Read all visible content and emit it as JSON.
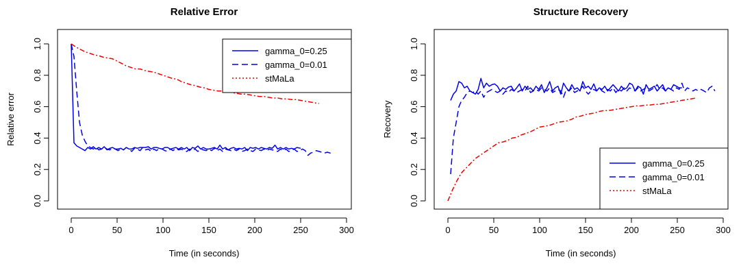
{
  "chart_data": [
    {
      "type": "line",
      "title": "Relative Error",
      "xlabel": "Time (in seconds)",
      "ylabel": "Relative error",
      "xlim": [
        0,
        300
      ],
      "ylim": [
        0,
        1
      ],
      "xticks": [
        "0",
        "50",
        "100",
        "150",
        "200",
        "250",
        "300"
      ],
      "yticks": [
        "0.0",
        "0.2",
        "0.4",
        "0.6",
        "0.8",
        "1.0"
      ],
      "legend_position": "top-right",
      "series": [
        {
          "name": "gamma_0=0.25",
          "color": "#0000ee",
          "style": "solid",
          "x": [
            0,
            3,
            6,
            9,
            12,
            15,
            18,
            21,
            24,
            27,
            30,
            33,
            36,
            39,
            42,
            45,
            48,
            51,
            54,
            57,
            60,
            63,
            66,
            69,
            72,
            75,
            78,
            81,
            84,
            87,
            90,
            93,
            96,
            99,
            102,
            105,
            108,
            111,
            114,
            117,
            120,
            123,
            126,
            129,
            132,
            135,
            138,
            141,
            144,
            147,
            150,
            153,
            156,
            159,
            162,
            165,
            168,
            171,
            174,
            177,
            180,
            183,
            186,
            189,
            192,
            195,
            198,
            201,
            204,
            207,
            210,
            213,
            216,
            219,
            222,
            225,
            228,
            231,
            234,
            237,
            240,
            243,
            246,
            250
          ],
          "y": [
            1.0,
            0.37,
            0.35,
            0.34,
            0.33,
            0.32,
            0.34,
            0.33,
            0.345,
            0.33,
            0.34,
            0.33,
            0.345,
            0.325,
            0.335,
            0.34,
            0.33,
            0.33,
            0.335,
            0.325,
            0.34,
            0.33,
            0.33,
            0.34,
            0.335,
            0.34,
            0.34,
            0.34,
            0.345,
            0.33,
            0.34,
            0.34,
            0.335,
            0.33,
            0.34,
            0.34,
            0.33,
            0.335,
            0.34,
            0.33,
            0.34,
            0.33,
            0.34,
            0.32,
            0.34,
            0.335,
            0.35,
            0.33,
            0.34,
            0.33,
            0.33,
            0.335,
            0.34,
            0.33,
            0.355,
            0.33,
            0.34,
            0.325,
            0.335,
            0.34,
            0.33,
            0.335,
            0.33,
            0.34,
            0.32,
            0.34,
            0.335,
            0.34,
            0.33,
            0.34,
            0.335,
            0.33,
            0.34,
            0.335,
            0.355,
            0.33,
            0.34,
            0.33,
            0.34,
            0.33,
            0.335,
            0.33,
            0.34,
            0.335
          ]
        },
        {
          "name": "gamma_0=0.01",
          "color": "#0000ee",
          "style": "dashed",
          "x": [
            0,
            3,
            6,
            9,
            12,
            15,
            18,
            21,
            24,
            27,
            30,
            33,
            36,
            39,
            42,
            45,
            48,
            51,
            54,
            57,
            60,
            63,
            66,
            69,
            72,
            75,
            78,
            81,
            84,
            87,
            90,
            93,
            96,
            99,
            102,
            105,
            108,
            111,
            114,
            117,
            120,
            123,
            126,
            129,
            132,
            135,
            138,
            141,
            144,
            147,
            150,
            153,
            156,
            159,
            162,
            165,
            168,
            171,
            174,
            177,
            180,
            183,
            186,
            189,
            192,
            195,
            198,
            201,
            204,
            207,
            210,
            213,
            216,
            219,
            222,
            225,
            228,
            231,
            234,
            237,
            240,
            243,
            246,
            249,
            252,
            255,
            258,
            261,
            264,
            267,
            270,
            273,
            276,
            279,
            282,
            285
          ],
          "y": [
            1.0,
            0.92,
            0.7,
            0.5,
            0.42,
            0.38,
            0.35,
            0.34,
            0.33,
            0.34,
            0.325,
            0.33,
            0.34,
            0.33,
            0.325,
            0.335,
            0.33,
            0.32,
            0.33,
            0.325,
            0.34,
            0.33,
            0.315,
            0.335,
            0.33,
            0.32,
            0.34,
            0.325,
            0.33,
            0.315,
            0.33,
            0.32,
            0.335,
            0.33,
            0.32,
            0.315,
            0.33,
            0.32,
            0.335,
            0.325,
            0.33,
            0.32,
            0.315,
            0.33,
            0.32,
            0.33,
            0.315,
            0.33,
            0.325,
            0.32,
            0.33,
            0.32,
            0.335,
            0.32,
            0.33,
            0.315,
            0.33,
            0.325,
            0.32,
            0.33,
            0.32,
            0.33,
            0.315,
            0.32,
            0.33,
            0.32,
            0.315,
            0.33,
            0.325,
            0.32,
            0.33,
            0.32,
            0.33,
            0.325,
            0.32,
            0.315,
            0.33,
            0.32,
            0.33,
            0.315,
            0.32,
            0.33,
            0.315,
            0.32,
            0.33,
            0.32,
            0.29,
            0.305,
            0.31,
            0.32,
            0.315,
            0.31,
            0.305,
            0.31,
            0.305,
            0.3
          ]
        },
        {
          "name": "stMaLa",
          "color": "#ee0000",
          "style": "dotdash",
          "x": [
            0,
            5,
            10,
            15,
            20,
            25,
            30,
            35,
            40,
            45,
            50,
            55,
            60,
            65,
            70,
            75,
            80,
            85,
            90,
            95,
            100,
            105,
            110,
            115,
            120,
            125,
            130,
            135,
            140,
            145,
            150,
            155,
            160,
            165,
            170,
            175,
            180,
            185,
            190,
            195,
            200,
            205,
            210,
            215,
            220,
            225,
            230,
            235,
            240,
            245,
            250,
            255,
            260,
            265,
            270
          ],
          "y": [
            1.0,
            0.98,
            0.965,
            0.95,
            0.94,
            0.93,
            0.925,
            0.915,
            0.91,
            0.905,
            0.89,
            0.875,
            0.86,
            0.85,
            0.84,
            0.84,
            0.83,
            0.825,
            0.82,
            0.81,
            0.8,
            0.79,
            0.78,
            0.775,
            0.76,
            0.75,
            0.74,
            0.735,
            0.725,
            0.72,
            0.71,
            0.705,
            0.7,
            0.7,
            0.695,
            0.69,
            0.685,
            0.68,
            0.68,
            0.675,
            0.67,
            0.665,
            0.665,
            0.66,
            0.655,
            0.655,
            0.65,
            0.65,
            0.645,
            0.645,
            0.64,
            0.635,
            0.63,
            0.625,
            0.62
          ]
        }
      ]
    },
    {
      "type": "line",
      "title": "Structure Recovery",
      "xlabel": "Time (in seconds)",
      "ylabel": "Recovery",
      "xlim": [
        0,
        300
      ],
      "ylim": [
        0,
        1
      ],
      "xticks": [
        "0",
        "50",
        "100",
        "150",
        "200",
        "250",
        "300"
      ],
      "yticks": [
        "0.0",
        "0.2",
        "0.4",
        "0.6",
        "0.8",
        "1.0"
      ],
      "legend_position": "bottom-right",
      "series": [
        {
          "name": "gamma_0=0.25",
          "color": "#0000ee",
          "style": "solid",
          "x": [
            3,
            6,
            9,
            12,
            15,
            18,
            21,
            24,
            27,
            30,
            33,
            36,
            39,
            42,
            45,
            48,
            51,
            54,
            57,
            60,
            63,
            66,
            69,
            72,
            75,
            78,
            81,
            84,
            87,
            90,
            93,
            96,
            99,
            102,
            105,
            108,
            111,
            114,
            117,
            120,
            123,
            126,
            129,
            132,
            135,
            138,
            141,
            144,
            147,
            150,
            153,
            156,
            159,
            162,
            165,
            168,
            171,
            174,
            177,
            180,
            183,
            186,
            189,
            192,
            195,
            198,
            201,
            204,
            207,
            210,
            213,
            216,
            219,
            222,
            225,
            228,
            231,
            234,
            237,
            240,
            243,
            246,
            249,
            252,
            255
          ],
          "y": [
            0.64,
            0.68,
            0.7,
            0.76,
            0.75,
            0.72,
            0.73,
            0.7,
            0.69,
            0.68,
            0.71,
            0.78,
            0.72,
            0.75,
            0.73,
            0.74,
            0.745,
            0.73,
            0.7,
            0.72,
            0.71,
            0.725,
            0.73,
            0.7,
            0.72,
            0.745,
            0.7,
            0.73,
            0.71,
            0.72,
            0.7,
            0.73,
            0.71,
            0.74,
            0.69,
            0.72,
            0.76,
            0.7,
            0.72,
            0.73,
            0.68,
            0.75,
            0.72,
            0.7,
            0.74,
            0.71,
            0.72,
            0.7,
            0.76,
            0.72,
            0.73,
            0.71,
            0.745,
            0.7,
            0.72,
            0.71,
            0.73,
            0.7,
            0.72,
            0.74,
            0.72,
            0.7,
            0.73,
            0.71,
            0.72,
            0.75,
            0.74,
            0.7,
            0.73,
            0.72,
            0.68,
            0.74,
            0.71,
            0.72,
            0.73,
            0.7,
            0.72,
            0.74,
            0.7,
            0.72,
            0.71,
            0.74,
            0.73,
            0.72,
            0.72
          ]
        },
        {
          "name": "gamma_0=0.01",
          "color": "#0000ee",
          "style": "dashed",
          "x": [
            3,
            6,
            9,
            12,
            15,
            18,
            21,
            24,
            27,
            30,
            33,
            36,
            39,
            42,
            45,
            48,
            51,
            54,
            57,
            60,
            63,
            66,
            69,
            72,
            75,
            78,
            81,
            84,
            87,
            90,
            93,
            96,
            99,
            102,
            105,
            108,
            111,
            114,
            117,
            120,
            123,
            126,
            129,
            132,
            135,
            138,
            141,
            144,
            147,
            150,
            153,
            156,
            159,
            162,
            165,
            168,
            171,
            174,
            177,
            180,
            183,
            186,
            189,
            192,
            195,
            198,
            201,
            204,
            207,
            210,
            213,
            216,
            219,
            222,
            225,
            228,
            231,
            234,
            237,
            240,
            243,
            246,
            249,
            252,
            255,
            258,
            261,
            264,
            267,
            270,
            273,
            276,
            279,
            282,
            285,
            288,
            291
          ],
          "y": [
            0.17,
            0.4,
            0.5,
            0.6,
            0.64,
            0.66,
            0.69,
            0.7,
            0.69,
            0.7,
            0.68,
            0.7,
            0.66,
            0.69,
            0.7,
            0.71,
            0.7,
            0.69,
            0.7,
            0.68,
            0.7,
            0.69,
            0.71,
            0.7,
            0.69,
            0.7,
            0.71,
            0.7,
            0.73,
            0.69,
            0.7,
            0.71,
            0.7,
            0.72,
            0.71,
            0.7,
            0.72,
            0.69,
            0.7,
            0.71,
            0.7,
            0.66,
            0.71,
            0.7,
            0.72,
            0.69,
            0.7,
            0.71,
            0.73,
            0.7,
            0.68,
            0.7,
            0.71,
            0.7,
            0.72,
            0.7,
            0.69,
            0.71,
            0.7,
            0.72,
            0.69,
            0.71,
            0.7,
            0.72,
            0.7,
            0.72,
            0.71,
            0.7,
            0.72,
            0.7,
            0.71,
            0.72,
            0.7,
            0.71,
            0.72,
            0.74,
            0.71,
            0.72,
            0.7,
            0.72,
            0.71,
            0.7,
            0.72,
            0.71,
            0.75,
            0.7,
            0.72,
            0.71,
            0.7,
            0.71,
            0.7,
            0.71,
            0.7,
            0.69,
            0.72,
            0.73,
            0.7
          ]
        },
        {
          "name": "stMaLa",
          "color": "#ee0000",
          "style": "dotdash",
          "x": [
            0,
            5,
            10,
            15,
            20,
            25,
            30,
            35,
            40,
            45,
            50,
            55,
            60,
            65,
            70,
            75,
            80,
            85,
            90,
            95,
            100,
            105,
            110,
            115,
            120,
            125,
            130,
            135,
            140,
            145,
            150,
            155,
            160,
            165,
            170,
            175,
            180,
            185,
            190,
            195,
            200,
            205,
            210,
            215,
            220,
            225,
            230,
            235,
            240,
            245,
            250,
            255,
            260,
            265,
            270
          ],
          "y": [
            0.0,
            0.07,
            0.13,
            0.18,
            0.21,
            0.24,
            0.27,
            0.29,
            0.31,
            0.33,
            0.35,
            0.37,
            0.375,
            0.385,
            0.4,
            0.405,
            0.42,
            0.43,
            0.44,
            0.455,
            0.47,
            0.475,
            0.48,
            0.49,
            0.5,
            0.505,
            0.51,
            0.52,
            0.535,
            0.54,
            0.55,
            0.555,
            0.56,
            0.57,
            0.575,
            0.575,
            0.58,
            0.585,
            0.59,
            0.595,
            0.6,
            0.605,
            0.605,
            0.61,
            0.61,
            0.615,
            0.615,
            0.62,
            0.625,
            0.63,
            0.635,
            0.64,
            0.645,
            0.65,
            0.655
          ]
        }
      ]
    }
  ]
}
